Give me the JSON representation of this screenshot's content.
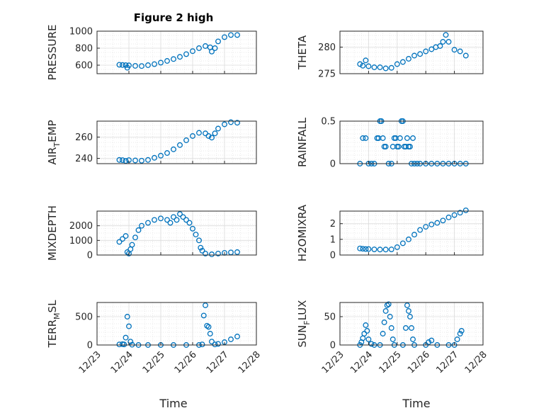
{
  "title": "Figure 2 high",
  "chart_data": [
    {
      "type": "scatter",
      "ylabel": "PRESSURE",
      "ylim": [
        500,
        1000
      ],
      "yticks": [
        600,
        800,
        1000
      ],
      "grid": "major+minor",
      "xlim": [
        "12/23",
        "12/28"
      ],
      "points": [
        [
          23.7,
          605
        ],
        [
          23.8,
          602
        ],
        [
          23.9,
          600
        ],
        [
          23.95,
          570
        ],
        [
          24.0,
          598
        ],
        [
          24.2,
          592
        ],
        [
          24.4,
          590
        ],
        [
          24.6,
          600
        ],
        [
          24.8,
          612
        ],
        [
          25.0,
          630
        ],
        [
          25.2,
          650
        ],
        [
          25.4,
          672
        ],
        [
          25.6,
          698
        ],
        [
          25.8,
          730
        ],
        [
          26.0,
          765
        ],
        [
          26.2,
          800
        ],
        [
          26.4,
          825
        ],
        [
          26.55,
          810
        ],
        [
          26.6,
          760
        ],
        [
          26.7,
          800
        ],
        [
          26.8,
          880
        ],
        [
          27.0,
          930
        ],
        [
          27.2,
          955
        ],
        [
          27.4,
          955
        ]
      ]
    },
    {
      "type": "scatter",
      "ylabel": "THETA",
      "ylim": [
        275,
        283
      ],
      "yticks": [
        275,
        280
      ],
      "grid": "major+minor",
      "xlim": [
        "12/23",
        "12/28"
      ],
      "points": [
        [
          23.7,
          276.8
        ],
        [
          23.8,
          276.5
        ],
        [
          23.9,
          277.5
        ],
        [
          24.0,
          276.4
        ],
        [
          24.2,
          276.2
        ],
        [
          24.4,
          276.2
        ],
        [
          24.6,
          276.0
        ],
        [
          24.8,
          276.1
        ],
        [
          25.0,
          276.8
        ],
        [
          25.2,
          277.2
        ],
        [
          25.4,
          277.8
        ],
        [
          25.6,
          278.4
        ],
        [
          25.8,
          278.7
        ],
        [
          26.0,
          279.2
        ],
        [
          26.2,
          279.6
        ],
        [
          26.35,
          280.0
        ],
        [
          26.5,
          280.2
        ],
        [
          26.6,
          281.0
        ],
        [
          26.7,
          282.3
        ],
        [
          26.8,
          281.0
        ],
        [
          27.0,
          279.5
        ],
        [
          27.2,
          279.2
        ],
        [
          27.4,
          278.4
        ]
      ]
    },
    {
      "type": "scatter",
      "ylabel": "AIR_TEMP",
      "ylim": [
        235,
        275
      ],
      "yticks": [
        240,
        260
      ],
      "grid": "major+minor",
      "xlim": [
        "12/23",
        "12/28"
      ],
      "points": [
        [
          23.7,
          238.5
        ],
        [
          23.8,
          238.3
        ],
        [
          23.9,
          237.6
        ],
        [
          24.0,
          238.3
        ],
        [
          24.2,
          238.0
        ],
        [
          24.4,
          237.8
        ],
        [
          24.6,
          238.5
        ],
        [
          24.8,
          240.5
        ],
        [
          25.0,
          242.5
        ],
        [
          25.2,
          245.0
        ],
        [
          25.4,
          248.5
        ],
        [
          25.6,
          252.5
        ],
        [
          25.8,
          257.0
        ],
        [
          26.0,
          261.0
        ],
        [
          26.2,
          264.0
        ],
        [
          26.4,
          263.5
        ],
        [
          26.5,
          261.0
        ],
        [
          26.6,
          259.5
        ],
        [
          26.7,
          263.5
        ],
        [
          26.8,
          268.0
        ],
        [
          27.0,
          272.0
        ],
        [
          27.2,
          274.0
        ],
        [
          27.4,
          273.5
        ]
      ]
    },
    {
      "type": "scatter",
      "ylabel": "RAINFALL",
      "ylim": [
        0,
        0.5
      ],
      "yticks": [
        0,
        0.5
      ],
      "grid": "major+minor",
      "xlim": [
        "12/23",
        "12/28"
      ],
      "points": [
        [
          23.7,
          0
        ],
        [
          23.8,
          0.3
        ],
        [
          23.9,
          0.3
        ],
        [
          24.0,
          0
        ],
        [
          24.1,
          0
        ],
        [
          24.2,
          0
        ],
        [
          24.3,
          0.3
        ],
        [
          24.35,
          0.3
        ],
        [
          24.4,
          0.5
        ],
        [
          24.45,
          0.5
        ],
        [
          24.5,
          0.3
        ],
        [
          24.55,
          0.2
        ],
        [
          24.6,
          0.2
        ],
        [
          24.7,
          0
        ],
        [
          24.8,
          0
        ],
        [
          24.85,
          0.2
        ],
        [
          24.9,
          0.3
        ],
        [
          24.95,
          0.3
        ],
        [
          25.0,
          0.2
        ],
        [
          25.05,
          0.2
        ],
        [
          25.1,
          0.3
        ],
        [
          25.15,
          0.5
        ],
        [
          25.2,
          0.5
        ],
        [
          25.25,
          0.2
        ],
        [
          25.3,
          0.2
        ],
        [
          25.35,
          0.3
        ],
        [
          25.4,
          0.2
        ],
        [
          25.45,
          0.2
        ],
        [
          25.5,
          0
        ],
        [
          25.55,
          0.3
        ],
        [
          25.6,
          0
        ],
        [
          25.7,
          0
        ],
        [
          25.8,
          0
        ],
        [
          26.0,
          0
        ],
        [
          26.2,
          0
        ],
        [
          26.4,
          0
        ],
        [
          26.6,
          0
        ],
        [
          26.8,
          0
        ],
        [
          27.0,
          0
        ],
        [
          27.2,
          0
        ],
        [
          27.4,
          0
        ]
      ]
    },
    {
      "type": "scatter",
      "ylabel": "MIXDEPTH",
      "ylim": [
        0,
        3000
      ],
      "yticks": [
        0,
        1000,
        2000
      ],
      "grid": "major+minor",
      "xlim": [
        "12/23",
        "12/28"
      ],
      "points": [
        [
          23.7,
          900
        ],
        [
          23.8,
          1100
        ],
        [
          23.9,
          1300
        ],
        [
          23.95,
          200
        ],
        [
          24.0,
          100
        ],
        [
          24.05,
          400
        ],
        [
          24.1,
          700
        ],
        [
          24.2,
          1200
        ],
        [
          24.3,
          1700
        ],
        [
          24.4,
          2000
        ],
        [
          24.6,
          2200
        ],
        [
          24.8,
          2400
        ],
        [
          25.0,
          2500
        ],
        [
          25.2,
          2400
        ],
        [
          25.3,
          2200
        ],
        [
          25.4,
          2600
        ],
        [
          25.5,
          2400
        ],
        [
          25.6,
          2800
        ],
        [
          25.7,
          2600
        ],
        [
          25.8,
          2400
        ],
        [
          25.9,
          2200
        ],
        [
          26.0,
          1800
        ],
        [
          26.1,
          1400
        ],
        [
          26.2,
          1000
        ],
        [
          26.25,
          500
        ],
        [
          26.3,
          300
        ],
        [
          26.4,
          100
        ],
        [
          26.6,
          50
        ],
        [
          26.8,
          100
        ],
        [
          27.0,
          150
        ],
        [
          27.2,
          180
        ],
        [
          27.4,
          200
        ]
      ]
    },
    {
      "type": "scatter",
      "ylabel": "H2OMIXRA",
      "ylim": [
        0,
        2.8
      ],
      "yticks": [
        0,
        1,
        2
      ],
      "grid": "major+minor",
      "xlim": [
        "12/23",
        "12/28"
      ],
      "points": [
        [
          23.7,
          0.42
        ],
        [
          23.8,
          0.4
        ],
        [
          23.9,
          0.38
        ],
        [
          24.0,
          0.38
        ],
        [
          24.2,
          0.36
        ],
        [
          24.4,
          0.35
        ],
        [
          24.6,
          0.35
        ],
        [
          24.8,
          0.36
        ],
        [
          25.0,
          0.5
        ],
        [
          25.2,
          0.75
        ],
        [
          25.4,
          1.0
        ],
        [
          25.6,
          1.3
        ],
        [
          25.8,
          1.6
        ],
        [
          26.0,
          1.8
        ],
        [
          26.2,
          1.95
        ],
        [
          26.4,
          2.05
        ],
        [
          26.6,
          2.2
        ],
        [
          26.8,
          2.4
        ],
        [
          27.0,
          2.55
        ],
        [
          27.2,
          2.7
        ],
        [
          27.4,
          2.85
        ]
      ]
    },
    {
      "type": "scatter",
      "ylabel": "TERR_MSL",
      "ylim": [
        0,
        750
      ],
      "yticks": [
        0,
        500
      ],
      "grid": "major+minor",
      "xlim": [
        "12/23",
        "12/28"
      ],
      "points": [
        [
          23.7,
          10
        ],
        [
          23.8,
          15
        ],
        [
          23.85,
          10
        ],
        [
          23.9,
          130
        ],
        [
          23.95,
          500
        ],
        [
          24.0,
          330
        ],
        [
          24.05,
          60
        ],
        [
          24.1,
          5
        ],
        [
          24.3,
          0
        ],
        [
          24.6,
          0
        ],
        [
          25.0,
          0
        ],
        [
          25.4,
          0
        ],
        [
          25.8,
          0
        ],
        [
          26.2,
          0
        ],
        [
          26.3,
          10
        ],
        [
          26.35,
          520
        ],
        [
          26.4,
          700
        ],
        [
          26.45,
          340
        ],
        [
          26.5,
          320
        ],
        [
          26.55,
          200
        ],
        [
          26.6,
          60
        ],
        [
          26.7,
          10
        ],
        [
          26.8,
          20
        ],
        [
          27.0,
          50
        ],
        [
          27.2,
          100
        ],
        [
          27.4,
          150
        ]
      ]
    },
    {
      "type": "scatter",
      "ylabel": "SUN_FLUX",
      "ylim": [
        0,
        75
      ],
      "yticks": [
        0,
        50
      ],
      "grid": "major+minor",
      "xlim": [
        "12/23",
        "12/28"
      ],
      "points": [
        [
          23.7,
          0
        ],
        [
          23.75,
          5
        ],
        [
          23.8,
          12
        ],
        [
          23.85,
          20
        ],
        [
          23.9,
          35
        ],
        [
          23.95,
          25
        ],
        [
          24.0,
          10
        ],
        [
          24.1,
          2
        ],
        [
          24.2,
          0
        ],
        [
          24.4,
          0
        ],
        [
          24.5,
          20
        ],
        [
          24.55,
          40
        ],
        [
          24.6,
          60
        ],
        [
          24.65,
          70
        ],
        [
          24.7,
          72
        ],
        [
          24.75,
          50
        ],
        [
          24.8,
          30
        ],
        [
          24.85,
          10
        ],
        [
          24.9,
          0
        ],
        [
          25.2,
          0
        ],
        [
          25.3,
          30
        ],
        [
          25.35,
          70
        ],
        [
          25.4,
          60
        ],
        [
          25.45,
          50
        ],
        [
          25.5,
          30
        ],
        [
          25.55,
          10
        ],
        [
          25.6,
          0
        ],
        [
          26.0,
          0
        ],
        [
          26.1,
          5
        ],
        [
          26.2,
          8
        ],
        [
          26.4,
          0
        ],
        [
          26.8,
          0
        ],
        [
          27.0,
          0
        ],
        [
          27.1,
          10
        ],
        [
          27.2,
          20
        ],
        [
          27.25,
          25
        ]
      ]
    }
  ],
  "xticks": [
    "12/23",
    "12/24",
    "12/25",
    "12/26",
    "12/27",
    "12/28"
  ],
  "xlabel": "Time",
  "marker_color": "#0072BD"
}
